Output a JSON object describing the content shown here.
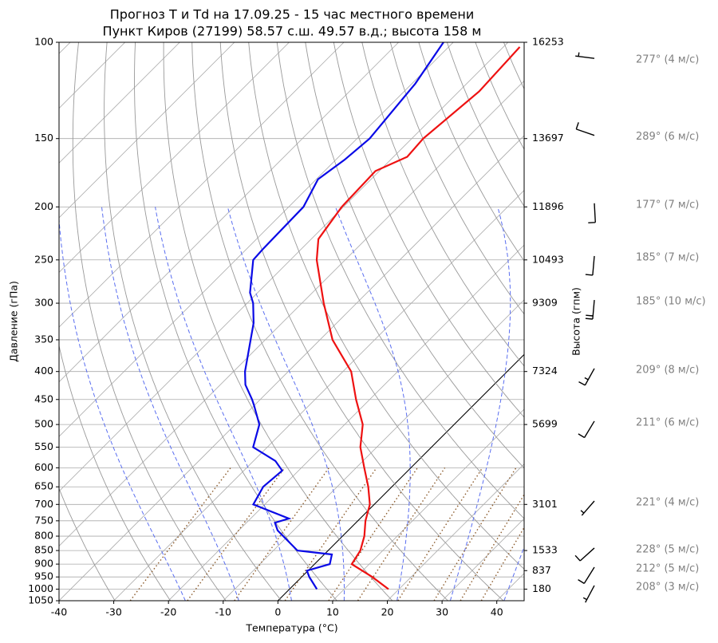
{
  "chart_data": {
    "type": "skewt",
    "title": "Прогноз T и Td на 17.09.25 - 15 час местного времени",
    "subtitle": "Пункт Киров (27199) 58.57 с.ш. 49.57 в.д.; высота 158 м",
    "xlabel": "Температура (°C)",
    "ylabel": "Давление (гПа)",
    "y2label": "Высота (гпм)",
    "xlim": [
      -40,
      45
    ],
    "xticks": [
      -40,
      -30,
      -20,
      -10,
      0,
      10,
      20,
      30,
      40
    ],
    "ylim": [
      1050,
      100
    ],
    "yticks": [
      100,
      150,
      200,
      250,
      300,
      350,
      400,
      450,
      500,
      550,
      600,
      650,
      700,
      750,
      800,
      850,
      900,
      950,
      1000,
      1050
    ],
    "log_y": true,
    "skew_deg": 45,
    "grid": true,
    "height_levels": [
      {
        "pressure": 100,
        "height": 16253
      },
      {
        "pressure": 150,
        "height": 13697
      },
      {
        "pressure": 200,
        "height": 11896
      },
      {
        "pressure": 250,
        "height": 10493
      },
      {
        "pressure": 300,
        "height": 9309
      },
      {
        "pressure": 400,
        "height": 7324
      },
      {
        "pressure": 500,
        "height": 5699
      },
      {
        "pressure": 700,
        "height": 3101
      },
      {
        "pressure": 850,
        "height": 1533
      },
      {
        "pressure": 925,
        "height": 837
      },
      {
        "pressure": 1000,
        "height": 180
      }
    ],
    "series": [
      {
        "color": "#ee1111",
        "pressure": [
          1000,
          950,
          900,
          850,
          800,
          750,
          700,
          650,
          600,
          550,
          500,
          450,
          400,
          350,
          300,
          250,
          229,
          200,
          172,
          162,
          150,
          123,
          102
        ],
        "values": [
          18.1,
          12.9,
          6.8,
          5.9,
          4.0,
          1.4,
          -0.8,
          -4.3,
          -8.5,
          -13.0,
          -16.7,
          -22.5,
          -28.5,
          -37.7,
          -46.0,
          -55.2,
          -58.7,
          -60.3,
          -60.7,
          -57.5,
          -57.9,
          -56.3,
          -57.0
        ]
      },
      {
        "color": "#0a0ae6",
        "pressure": [
          1000,
          950,
          925,
          900,
          864,
          850,
          781,
          756,
          743,
          700,
          650,
          607,
          583,
          550,
          500,
          461,
          450,
          423,
          400,
          326,
          300,
          287,
          250,
          239,
          200,
          178,
          164,
          150,
          119,
          100
        ],
        "values": [
          5.0,
          1.4,
          -0.2,
          2.8,
          1.4,
          -5.6,
          -12.9,
          -14.8,
          -13.0,
          -22.1,
          -23.5,
          -23.0,
          -26.0,
          -32.6,
          -35.6,
          -40.1,
          -41.5,
          -45.4,
          -47.9,
          -55.2,
          -58.9,
          -61.4,
          -66.8,
          -67.0,
          -67.3,
          -69.7,
          -68.4,
          -67.7,
          -69.4,
          -71.8
        ]
      }
    ],
    "winds": [
      {
        "pressure": 107,
        "direction": 277,
        "speed": 4,
        "label": "277° (4 м/с)"
      },
      {
        "pressure": 148,
        "direction": 289,
        "speed": 6,
        "label": "289° (6 м/с)"
      },
      {
        "pressure": 197,
        "direction": 177,
        "speed": 7,
        "label": "177° (7 м/с)"
      },
      {
        "pressure": 246,
        "direction": 185,
        "speed": 7,
        "label": "185° (7 м/с)"
      },
      {
        "pressure": 296,
        "direction": 185,
        "speed": 10,
        "label": "185° (10 м/с)"
      },
      {
        "pressure": 395,
        "direction": 209,
        "speed": 8,
        "label": "209° (8 м/с)"
      },
      {
        "pressure": 493,
        "direction": 211,
        "speed": 6,
        "label": "211° (6 м/с)"
      },
      {
        "pressure": 690,
        "direction": 221,
        "speed": 4,
        "label": "221° (4 м/с)"
      },
      {
        "pressure": 841,
        "direction": 228,
        "speed": 5,
        "label": "228° (5 м/с)"
      },
      {
        "pressure": 912,
        "direction": 212,
        "speed": 5,
        "label": "212° (5 м/с)"
      },
      {
        "pressure": 985,
        "direction": 208,
        "speed": 3,
        "label": "208° (3 м/с)"
      }
    ]
  }
}
